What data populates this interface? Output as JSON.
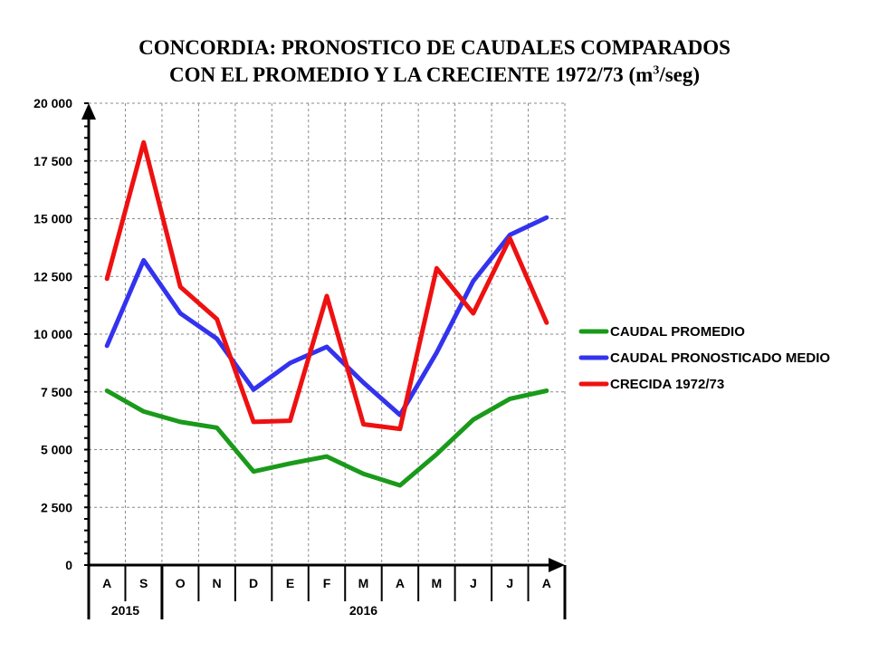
{
  "title": {
    "line1": "CONCORDIA: PRONOSTICO DE CAUDALES COMPARADOS",
    "line2_pre": "CON EL PROMEDIO Y LA CRECIENTE 1972/73 (m",
    "line2_sup": "3",
    "line2_post": "/seg)"
  },
  "chart_data": {
    "type": "line",
    "categories": [
      "A",
      "S",
      "O",
      "N",
      "D",
      "E",
      "F",
      "M",
      "A",
      "M",
      "J",
      "J",
      "A"
    ],
    "year_labels": [
      {
        "label": "2015",
        "from": 0,
        "to": 1
      },
      {
        "label": "2016",
        "from": 2,
        "to": 12
      }
    ],
    "ylim": [
      0,
      20000
    ],
    "yticks": [
      0,
      2500,
      5000,
      7500,
      10000,
      12500,
      15000,
      17500,
      20000
    ],
    "ytick_labels": [
      "0",
      "2 500",
      "5 000",
      "7 500",
      "10 000",
      "12 500",
      "15 000",
      "17 500",
      "20 000"
    ],
    "grid": true,
    "legend_position": "right",
    "series": [
      {
        "name": "CAUDAL PROMEDIO",
        "color": "#1a9a1a",
        "values": [
          7550,
          6650,
          6200,
          5950,
          4050,
          4400,
          4700,
          3950,
          3450,
          4800,
          6300,
          7200,
          7550
        ]
      },
      {
        "name": "CAUDAL PRONOSTICADO MEDIO",
        "color": "#3333ee",
        "values": [
          9500,
          13200,
          10900,
          9800,
          7600,
          8750,
          9450,
          7900,
          6500,
          9200,
          12300,
          14300,
          15050
        ]
      },
      {
        "name": "CRECIDA 1972/73",
        "color": "#ee1111",
        "values": [
          12400,
          18300,
          12050,
          10650,
          6200,
          6250,
          11650,
          6100,
          5900,
          12850,
          10900,
          14150,
          10500
        ]
      }
    ]
  }
}
